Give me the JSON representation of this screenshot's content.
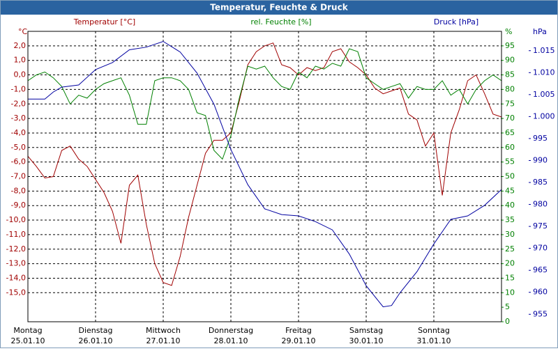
{
  "chart_data": {
    "type": "line",
    "title": "Temperatur, Feuchte & Druck",
    "axis_units": {
      "y": "°C",
      "y2": "%",
      "y3": "hPa"
    },
    "xlim": [
      0,
      168
    ],
    "days": [
      {
        "weekday": "Montag",
        "date": "25.01.10"
      },
      {
        "weekday": "Dienstag",
        "date": "26.01.10"
      },
      {
        "weekday": "Mittwoch",
        "date": "27.01.10"
      },
      {
        "weekday": "Donnerstag",
        "date": "28.01.10"
      },
      {
        "weekday": "Freitag",
        "date": "29.01.10"
      },
      {
        "weekday": "Samstag",
        "date": "30.01.10"
      },
      {
        "weekday": "Sonntag",
        "date": "31.01.10"
      }
    ],
    "ylim": [
      -17,
      3
    ],
    "yticks": [
      {
        "value": 2,
        "label": "2,0"
      },
      {
        "value": 1,
        "label": "1,0"
      },
      {
        "value": 0,
        "label": "0,0"
      },
      {
        "value": -1,
        "label": "-1,0"
      },
      {
        "value": -2,
        "label": "-2,0"
      },
      {
        "value": -3,
        "label": "-3,0"
      },
      {
        "value": -4,
        "label": "-4,0"
      },
      {
        "value": -5,
        "label": "-5,0"
      },
      {
        "value": -6,
        "label": "-6,0"
      },
      {
        "value": -7,
        "label": "-7,0"
      },
      {
        "value": -8,
        "label": "-8,0"
      },
      {
        "value": -9,
        "label": "-9,0"
      },
      {
        "value": -10,
        "label": "-10,0"
      },
      {
        "value": -11,
        "label": "-11,0"
      },
      {
        "value": -12,
        "label": "-12,0"
      },
      {
        "value": -13,
        "label": "-13,0"
      },
      {
        "value": -14,
        "label": "-14,0"
      },
      {
        "value": -15,
        "label": "-15,0"
      }
    ],
    "y2lim": [
      0,
      100
    ],
    "y2ticks": [
      0,
      5,
      10,
      15,
      20,
      25,
      30,
      35,
      40,
      45,
      50,
      55,
      60,
      65,
      70,
      75,
      80,
      85,
      90,
      95
    ],
    "y3lim": [
      953.3,
      1019.4
    ],
    "y3ticks": [
      955,
      960,
      965,
      970,
      975,
      980,
      985,
      990,
      995,
      {
        "value": 1000,
        "label": "1.000"
      },
      {
        "value": 1005,
        "label": "1.005"
      },
      {
        "value": 1010,
        "label": "1.010"
      },
      {
        "value": 1015,
        "label": "1.015"
      }
    ],
    "grid": true,
    "series": [
      {
        "name": "Temperatur [°C]",
        "color": "#a00000",
        "axis": "y",
        "x": [
          0,
          3,
          6,
          9,
          12,
          15,
          18,
          21,
          24,
          27,
          30,
          33,
          36,
          39,
          42,
          45,
          48,
          51,
          54,
          57,
          60,
          63,
          66,
          69,
          72,
          75,
          78,
          81,
          84,
          87,
          90,
          93,
          96,
          99,
          102,
          105,
          108,
          111,
          114,
          117,
          120,
          123,
          126,
          129,
          132,
          135,
          138,
          141,
          144,
          147,
          150,
          153,
          156,
          159,
          162,
          165,
          168
        ],
        "values": [
          -5.6,
          -6.3,
          -7.1,
          -7.0,
          -5.2,
          -4.9,
          -5.8,
          -6.3,
          -7.2,
          -8.1,
          -9.4,
          -11.6,
          -7.6,
          -6.9,
          -10.3,
          -13.0,
          -14.3,
          -14.5,
          -12.5,
          -9.8,
          -7.6,
          -5.4,
          -4.5,
          -4.5,
          -4.0,
          -1.8,
          0.7,
          1.6,
          2.0,
          2.2,
          0.7,
          0.5,
          0.0,
          0.5,
          0.3,
          0.5,
          1.6,
          1.8,
          0.9,
          0.5,
          0.0,
          -0.9,
          -1.3,
          -1.1,
          -0.9,
          -2.7,
          -3.1,
          -4.9,
          -4.0,
          -8.3,
          -4.0,
          -2.4,
          -0.4,
          0.0,
          -1.3,
          -2.7,
          -2.9
        ]
      },
      {
        "name": "rel. Feuchte [%]",
        "color": "#008000",
        "axis": "y2",
        "x": [
          0,
          3,
          6,
          9,
          12,
          15,
          18,
          21,
          24,
          27,
          30,
          33,
          36,
          39,
          42,
          45,
          48,
          51,
          54,
          57,
          60,
          63,
          66,
          69,
          72,
          75,
          78,
          81,
          84,
          87,
          90,
          93,
          96,
          99,
          102,
          105,
          108,
          111,
          114,
          117,
          120,
          123,
          126,
          129,
          132,
          135,
          138,
          141,
          144,
          147,
          150,
          153,
          156,
          159,
          162,
          165,
          168
        ],
        "values": [
          83,
          85,
          86,
          84,
          81,
          75,
          78,
          77,
          80,
          82,
          83,
          84,
          78,
          68,
          68,
          83,
          84,
          84,
          83,
          80,
          72,
          71,
          59,
          56,
          64,
          77,
          88,
          87,
          88,
          84,
          81,
          80,
          86,
          84,
          88,
          87,
          89,
          88,
          94,
          93,
          84,
          82,
          80,
          81,
          82,
          77,
          81,
          80,
          80,
          83,
          78,
          80,
          75,
          80,
          83,
          85,
          83
        ]
      },
      {
        "name": "Druck [hPa]",
        "color": "#0000a0",
        "axis": "y3",
        "x": [
          0,
          6,
          9,
          12,
          18,
          24,
          30,
          36,
          42,
          48,
          54,
          60,
          66,
          72,
          78,
          84,
          90,
          96,
          102,
          108,
          114,
          120,
          126,
          129,
          132,
          138,
          144,
          150,
          156,
          162,
          168
        ],
        "values": [
          1004.0,
          1004.0,
          1005.6,
          1006.7,
          1007.2,
          1010.7,
          1012.3,
          1015.2,
          1015.8,
          1017.1,
          1014.7,
          1009.9,
          1002.8,
          992.5,
          984.5,
          979.0,
          977.7,
          977.4,
          976.1,
          974.2,
          968.7,
          961.5,
          956.7,
          957.0,
          959.9,
          964.7,
          971.0,
          976.6,
          977.4,
          979.8,
          983.4
        ]
      }
    ]
  }
}
